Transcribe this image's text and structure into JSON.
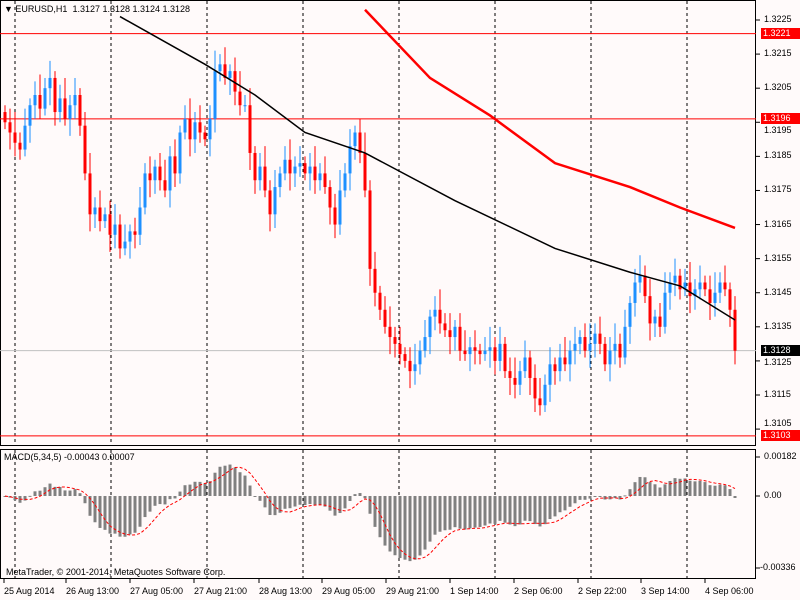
{
  "header": {
    "symbol": "EURUSD,H1",
    "ohlc": "1.3127 1.3128 1.3124 1.3128"
  },
  "macd_label": "MACD(5,34,5) -0.00043 0.00007",
  "copyright": "MetaTrader, © 2001-2014, MetaQuotes Software Corp.",
  "price_axis": [
    "1.3225",
    "1.3215",
    "1.3205",
    "1.3195",
    "1.3185",
    "1.3175",
    "1.3165",
    "1.3155",
    "1.3145",
    "1.3135",
    "1.3125",
    "1.3115",
    "1.3105"
  ],
  "macd_axis": [
    "0.00182",
    "0.00",
    "-0.00336"
  ],
  "levels": [
    {
      "price": 1.3221,
      "label": "1.3221"
    },
    {
      "price": 1.3196,
      "label": "1.3196"
    },
    {
      "price": 1.3103,
      "label": "1.3103"
    }
  ],
  "current": {
    "price": 1.3128,
    "label": "1.3128"
  },
  "time_labels": [
    "25 Aug 2014",
    "26 Aug 13:00",
    "27 Aug 05:00",
    "27 Aug 21:00",
    "28 Aug 13:00",
    "29 Aug 05:00",
    "29 Aug 21:00",
    "1 Sep 14:00",
    "2 Sep 06:00",
    "2 Sep 22:00",
    "3 Sep 14:00",
    "4 Sep 06:00"
  ],
  "colors": {
    "bull": "#1e90ff",
    "bear": "#ff0000",
    "level": "#ff0000",
    "ma_fast": "#000000",
    "ma_slow": "#ff0000"
  },
  "chart_data": {
    "type": "candlestick",
    "closes": [
      1.3195,
      1.3192,
      1.3189,
      1.3187,
      1.3194,
      1.32,
      1.3203,
      1.3199,
      1.3205,
      1.3208,
      1.3198,
      1.3202,
      1.3196,
      1.32,
      1.3203,
      1.3194,
      1.318,
      1.3168,
      1.317,
      1.3166,
      1.3168,
      1.3162,
      1.3165,
      1.3158,
      1.316,
      1.3163,
      1.3162,
      1.317,
      1.318,
      1.3178,
      1.3182,
      1.3178,
      1.3175,
      1.3185,
      1.318,
      1.3192,
      1.3196,
      1.319,
      1.3195,
      1.3192,
      1.319,
      1.3196,
      1.321,
      1.3212,
      1.3208,
      1.321,
      1.3204,
      1.32,
      1.32,
      1.3186,
      1.3178,
      1.3182,
      1.3175,
      1.3168,
      1.3176,
      1.318,
      1.3184,
      1.318,
      1.3182,
      1.3183,
      1.318,
      1.3182,
      1.3178,
      1.318,
      1.3176,
      1.317,
      1.3165,
      1.3175,
      1.318,
      1.3188,
      1.3192,
      1.3186,
      1.3175,
      1.3152,
      1.3145,
      1.314,
      1.3135,
      1.3132,
      1.313,
      1.3127,
      1.3125,
      1.3122,
      1.3124,
      1.3128,
      1.3132,
      1.3138,
      1.314,
      1.3136,
      1.3134,
      1.3132,
      1.3135,
      1.3128,
      1.3127,
      1.3129,
      1.3128,
      1.3127,
      1.3128,
      1.3129,
      1.3125,
      1.313,
      1.3122,
      1.312,
      1.3118,
      1.3122,
      1.3126,
      1.312,
      1.3114,
      1.3112,
      1.3118,
      1.3124,
      1.3122,
      1.3126,
      1.3124,
      1.3128,
      1.313,
      1.3132,
      1.3128,
      1.313,
      1.3133,
      1.313,
      1.3124,
      1.3128,
      1.313,
      1.3126,
      1.3135,
      1.3142,
      1.3148,
      1.315,
      1.3144,
      1.3136,
      1.3138,
      1.3135,
      1.3145,
      1.3148,
      1.315,
      1.3146,
      1.3148,
      1.3144,
      1.3146,
      1.3148,
      1.3146,
      1.3142,
      1.3145,
      1.3148,
      1.3146,
      1.314,
      1.3128
    ],
    "ma_fast": [
      [
        23,
        1.3226
      ],
      [
        40,
        1.3212
      ],
      [
        50,
        1.3203
      ],
      [
        60,
        1.3192
      ],
      [
        72,
        1.3186
      ],
      [
        90,
        1.3172
      ],
      [
        110,
        1.3158
      ],
      [
        125,
        1.3151
      ],
      [
        135,
        1.3147
      ],
      [
        146,
        1.3137
      ]
    ],
    "ma_slow": [
      [
        72,
        1.3228
      ],
      [
        85,
        1.3208
      ],
      [
        97,
        1.3197
      ],
      [
        110,
        1.3183
      ],
      [
        125,
        1.3176
      ],
      [
        135,
        1.317
      ],
      [
        146,
        1.3164
      ]
    ],
    "ylim": [
      1.3101,
      1.3231
    ],
    "macd_ylim": [
      -0.00336,
      0.00182
    ]
  }
}
